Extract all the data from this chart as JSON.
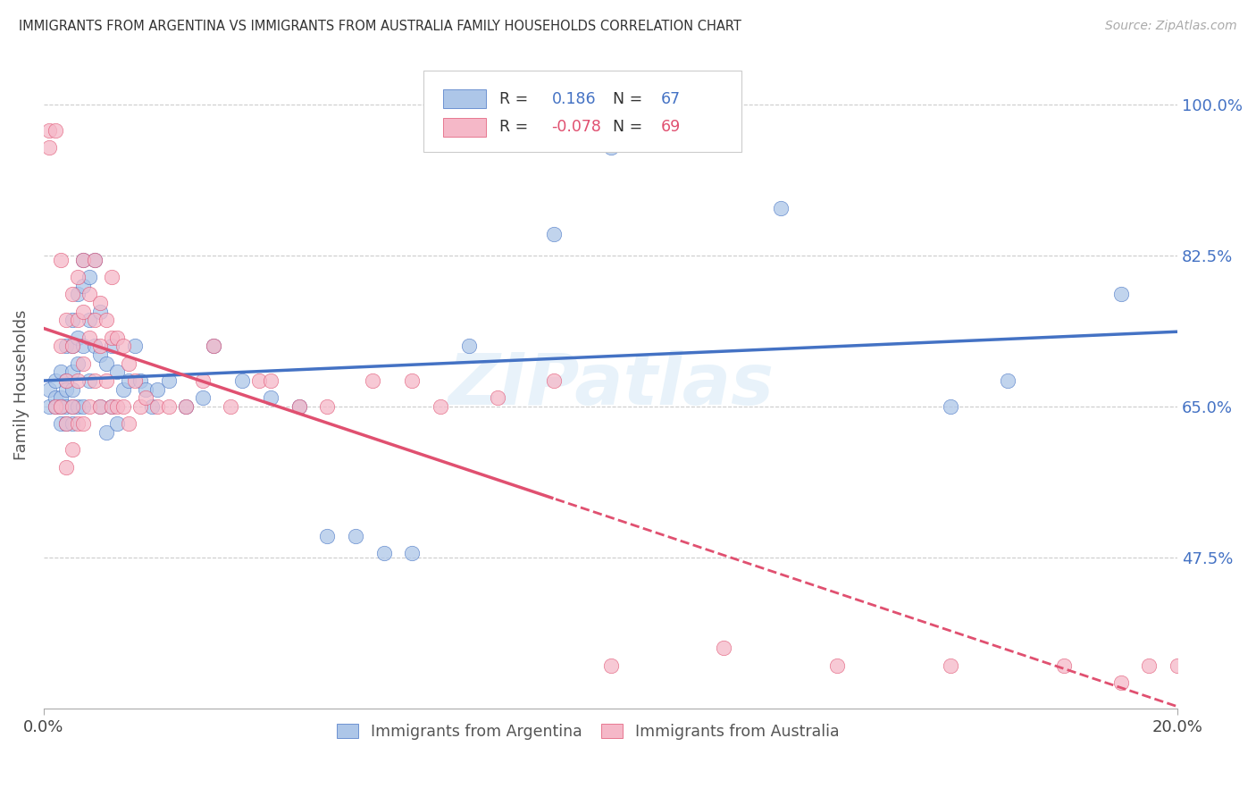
{
  "title": "IMMIGRANTS FROM ARGENTINA VS IMMIGRANTS FROM AUSTRALIA FAMILY HOUSEHOLDS CORRELATION CHART",
  "source": "Source: ZipAtlas.com",
  "ylabel": "Family Households",
  "yticks_labels": [
    "47.5%",
    "65.0%",
    "82.5%",
    "100.0%"
  ],
  "ytick_vals": [
    0.475,
    0.65,
    0.825,
    1.0
  ],
  "xlim": [
    0.0,
    0.2
  ],
  "ylim": [
    0.3,
    1.05
  ],
  "xtick_left": "0.0%",
  "xtick_right": "20.0%",
  "r_arg": "0.186",
  "n_arg": "67",
  "r_aus": "-0.078",
  "n_aus": "69",
  "color_arg_fill": "#adc6e8",
  "color_aus_fill": "#f5b8c8",
  "color_arg_line": "#4472c4",
  "color_aus_line": "#e05070",
  "watermark": "ZIPatlas",
  "argentina_x": [
    0.001,
    0.001,
    0.002,
    0.002,
    0.002,
    0.003,
    0.003,
    0.003,
    0.003,
    0.004,
    0.004,
    0.004,
    0.004,
    0.004,
    0.005,
    0.005,
    0.005,
    0.005,
    0.005,
    0.005,
    0.006,
    0.006,
    0.006,
    0.006,
    0.007,
    0.007,
    0.007,
    0.007,
    0.008,
    0.008,
    0.008,
    0.009,
    0.009,
    0.01,
    0.01,
    0.01,
    0.011,
    0.011,
    0.012,
    0.012,
    0.013,
    0.013,
    0.014,
    0.015,
    0.016,
    0.017,
    0.018,
    0.019,
    0.02,
    0.022,
    0.025,
    0.028,
    0.03,
    0.035,
    0.04,
    0.045,
    0.05,
    0.055,
    0.06,
    0.065,
    0.075,
    0.09,
    0.1,
    0.13,
    0.16,
    0.17,
    0.19
  ],
  "argentina_y": [
    0.67,
    0.65,
    0.68,
    0.66,
    0.65,
    0.69,
    0.66,
    0.65,
    0.63,
    0.72,
    0.68,
    0.67,
    0.65,
    0.63,
    0.75,
    0.72,
    0.69,
    0.67,
    0.65,
    0.63,
    0.78,
    0.73,
    0.7,
    0.65,
    0.82,
    0.79,
    0.72,
    0.65,
    0.8,
    0.75,
    0.68,
    0.82,
    0.72,
    0.76,
    0.71,
    0.65,
    0.7,
    0.62,
    0.72,
    0.65,
    0.69,
    0.63,
    0.67,
    0.68,
    0.72,
    0.68,
    0.67,
    0.65,
    0.67,
    0.68,
    0.65,
    0.66,
    0.72,
    0.68,
    0.66,
    0.65,
    0.5,
    0.5,
    0.48,
    0.48,
    0.72,
    0.85,
    0.95,
    0.88,
    0.65,
    0.68,
    0.78
  ],
  "australia_x": [
    0.001,
    0.001,
    0.002,
    0.002,
    0.003,
    0.003,
    0.003,
    0.004,
    0.004,
    0.004,
    0.004,
    0.005,
    0.005,
    0.005,
    0.005,
    0.006,
    0.006,
    0.006,
    0.006,
    0.007,
    0.007,
    0.007,
    0.007,
    0.008,
    0.008,
    0.008,
    0.009,
    0.009,
    0.009,
    0.01,
    0.01,
    0.01,
    0.011,
    0.011,
    0.012,
    0.012,
    0.012,
    0.013,
    0.013,
    0.014,
    0.014,
    0.015,
    0.015,
    0.016,
    0.017,
    0.018,
    0.02,
    0.022,
    0.025,
    0.028,
    0.03,
    0.033,
    0.038,
    0.04,
    0.045,
    0.05,
    0.058,
    0.065,
    0.07,
    0.08,
    0.09,
    0.1,
    0.12,
    0.14,
    0.16,
    0.18,
    0.19,
    0.195,
    0.2
  ],
  "australia_y": [
    0.97,
    0.95,
    0.97,
    0.65,
    0.82,
    0.72,
    0.65,
    0.75,
    0.68,
    0.63,
    0.58,
    0.78,
    0.72,
    0.65,
    0.6,
    0.8,
    0.75,
    0.68,
    0.63,
    0.82,
    0.76,
    0.7,
    0.63,
    0.78,
    0.73,
    0.65,
    0.82,
    0.75,
    0.68,
    0.77,
    0.72,
    0.65,
    0.75,
    0.68,
    0.8,
    0.73,
    0.65,
    0.73,
    0.65,
    0.72,
    0.65,
    0.7,
    0.63,
    0.68,
    0.65,
    0.66,
    0.65,
    0.65,
    0.65,
    0.68,
    0.72,
    0.65,
    0.68,
    0.68,
    0.65,
    0.65,
    0.68,
    0.68,
    0.65,
    0.66,
    0.68,
    0.35,
    0.37,
    0.35,
    0.35,
    0.35,
    0.33,
    0.35,
    0.35
  ]
}
